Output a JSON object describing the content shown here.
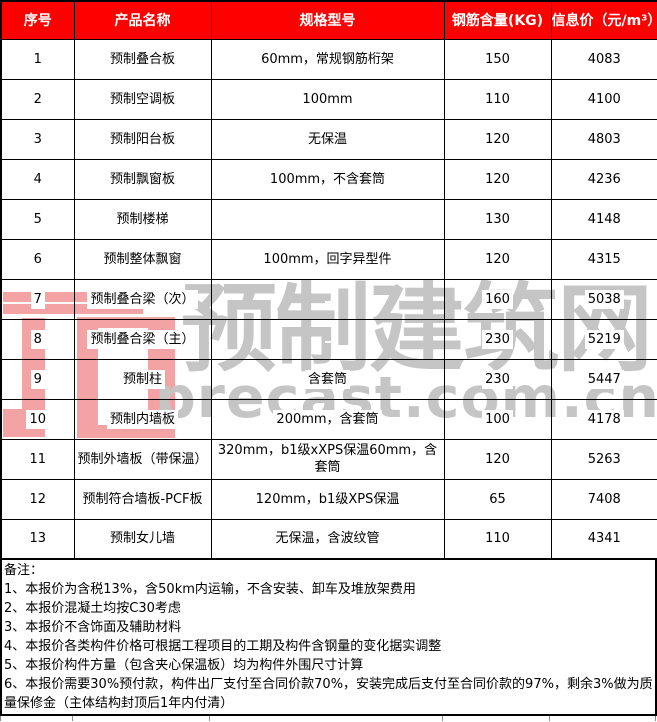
{
  "table": {
    "header": [
      "序号",
      "产品名称",
      "规格型号",
      "钢筋含量(KG)",
      "信息价（元/m³）"
    ],
    "rows": [
      {
        "no": "1",
        "name": "预制叠合板",
        "spec": "60mm，常规钢筋桁架",
        "steel": "150",
        "price": "4083"
      },
      {
        "no": "2",
        "name": "预制空调板",
        "spec": "100mm",
        "steel": "110",
        "price": "4100"
      },
      {
        "no": "3",
        "name": "预制阳台板",
        "spec": "无保温",
        "steel": "120",
        "price": "4803"
      },
      {
        "no": "4",
        "name": "预制飘窗板",
        "spec": "100mm，不含套筒",
        "steel": "120",
        "price": "4236"
      },
      {
        "no": "5",
        "name": "预制楼梯",
        "spec": "",
        "steel": "130",
        "price": "4148"
      },
      {
        "no": "6",
        "name": "预制整体飘窗",
        "spec": "100mm，回字异型件",
        "steel": "120",
        "price": "4315"
      },
      {
        "no": "7",
        "name": "预制叠合梁（次）",
        "spec": "",
        "steel": "160",
        "price": "5038"
      },
      {
        "no": "8",
        "name": "预制叠合梁（主）",
        "spec": "",
        "steel": "230",
        "price": "5219"
      },
      {
        "no": "9",
        "name": "预制柱",
        "spec": "含套筒",
        "steel": "230",
        "price": "5447"
      },
      {
        "no": "10",
        "name": "预制内墙板",
        "spec": "200mm，含套筒",
        "steel": "100",
        "price": "4178"
      },
      {
        "no": "11",
        "name": "预制外墙板（带保温）",
        "spec": "320mm，b1级xXPS保温60mm，含套筒",
        "steel": "120",
        "price": "5263"
      },
      {
        "no": "12",
        "name": "预制符合墙板-PCF板",
        "spec": "120mm，b1级XPS保温",
        "steel": "65",
        "price": "7408"
      },
      {
        "no": "13",
        "name": "预制女儿墙",
        "spec": "无保温，含波纹管",
        "steel": "110",
        "price": "4341"
      }
    ]
  },
  "notes": {
    "label": "备注：",
    "items": [
      "1、本报价为含税13%，含50km内运输，不含安装、卸车及堆放架费用",
      "2、本报价混凝土均按C30考虑",
      "3、本报价不含饰面及辅助材料",
      "4、本报价各类构件价格可根据工程项目的工期及构件含钢量的变化据实调整",
      "5、本报价构件方量（包含夹心保温板）均为构件外围尺寸计算",
      "6、本报价需要30%预付款，构件出厂支付至合同价款70%，安装完成后支付至合同价款的97%，剩余3%做为质量保修金（主体结构封顶后1年内付清）"
    ]
  },
  "watermark": {
    "cn": "预制建筑网",
    "en": "precast.com.cn"
  },
  "colors": {
    "header_bg": "#ff0000",
    "header_text": "#ffffff",
    "watermark_pink": "#f4a3a5",
    "watermark_gray": "#c5c5c5"
  }
}
